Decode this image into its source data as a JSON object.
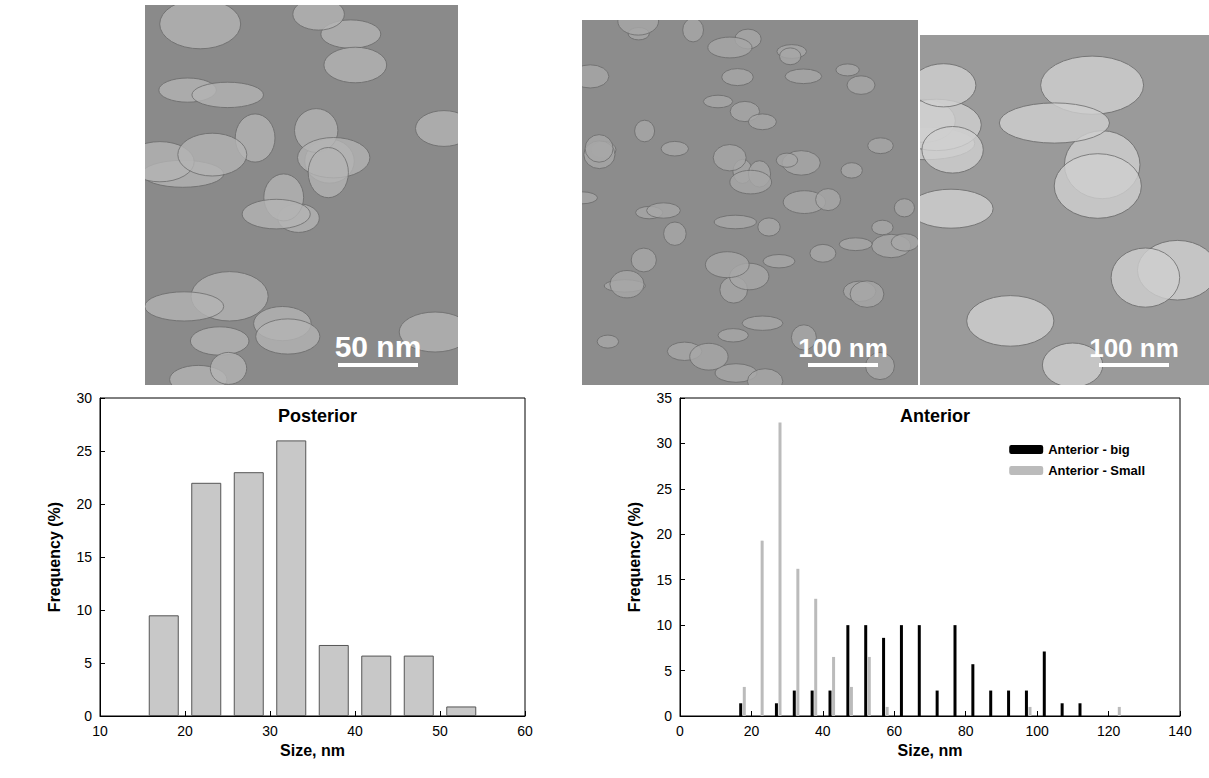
{
  "images": [
    {
      "scale_bar": "50 nm"
    },
    {
      "scale_bar": "100 nm"
    },
    {
      "scale_bar": "100 nm"
    }
  ],
  "chart_data": [
    {
      "type": "bar",
      "title": "Posterior",
      "x_label": "Size, nm",
      "y_label": "Frequency (%)",
      "x": [
        17.5,
        22.5,
        27.5,
        32.5,
        37.5,
        42.5,
        47.5,
        52.5
      ],
      "values": [
        9.5,
        22,
        23,
        26,
        6.7,
        5.7,
        5.7,
        0.9
      ],
      "color": "#c8c8c8",
      "xlim": [
        10,
        60
      ],
      "xticks": [
        10,
        20,
        30,
        40,
        50,
        60
      ],
      "ylim": [
        0,
        30
      ],
      "yticks": [
        0,
        5,
        10,
        15,
        20,
        25,
        30
      ],
      "grid": false
    },
    {
      "type": "bar",
      "title": "Anterior",
      "x_label": "Size, nm",
      "y_label": "Frequency (%)",
      "series": [
        {
          "name": "Anterior - big",
          "color": "#000000",
          "x": [
            17,
            27,
            32,
            37,
            42,
            47,
            52,
            57,
            62,
            67,
            72,
            77,
            82,
            87,
            92,
            97,
            102,
            107,
            112
          ],
          "values": [
            1.4,
            1.4,
            2.8,
            2.8,
            2.8,
            10,
            10,
            8.6,
            10,
            10,
            2.8,
            10,
            5.7,
            2.8,
            2.8,
            2.8,
            7.1,
            1.4,
            1.4
          ]
        },
        {
          "name": "Anterior - Small",
          "color": "#bbbbbb",
          "x": [
            18,
            23,
            28,
            33,
            38,
            43,
            48,
            53,
            58,
            98,
            123
          ],
          "values": [
            3.2,
            19.3,
            32.3,
            16.2,
            12.9,
            6.5,
            3.2,
            6.5,
            1,
            1,
            1
          ]
        }
      ],
      "xlim": [
        0,
        140
      ],
      "xticks": [
        0,
        20,
        40,
        60,
        80,
        100,
        120,
        140
      ],
      "ylim": [
        0,
        35
      ],
      "yticks": [
        0,
        5,
        10,
        15,
        20,
        25,
        30,
        35
      ],
      "grid": false,
      "legend": "upper right"
    }
  ]
}
